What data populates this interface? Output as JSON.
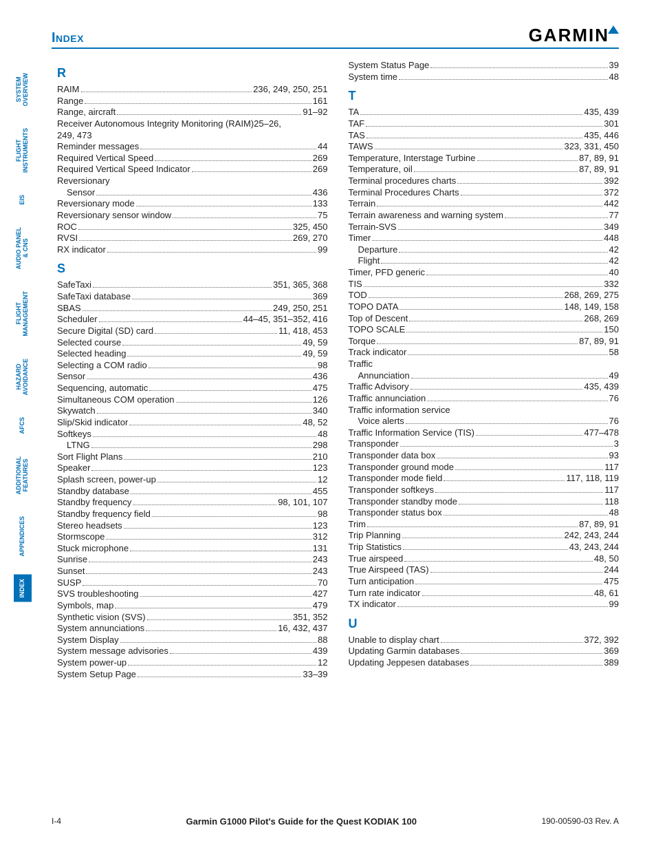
{
  "header": {
    "title": "Index",
    "logo_text": "GARMIN"
  },
  "tabs": [
    {
      "label": "SYSTEM\nOVERVIEW",
      "active": false
    },
    {
      "label": "FLIGHT\nINSTRUMENTS",
      "active": false
    },
    {
      "label": "EIS",
      "active": false
    },
    {
      "label": "AUDIO PANEL\n& CNS",
      "active": false
    },
    {
      "label": "FLIGHT\nMANAGEMENT",
      "active": false
    },
    {
      "label": "HAZARD\nAVOIDANCE",
      "active": false
    },
    {
      "label": "AFCS",
      "active": false
    },
    {
      "label": "ADDITIONAL\nFEATURES",
      "active": false
    },
    {
      "label": "APPENDICES",
      "active": false
    },
    {
      "label": "INDEX",
      "active": true
    }
  ],
  "footer": {
    "left": "I-4",
    "center": "Garmin G1000 Pilot's Guide for the Quest KODIAK 100",
    "right": "190-00590-03  Rev. A"
  },
  "sections": {
    "left": [
      {
        "head": "R",
        "items": [
          {
            "t": "RAIM",
            "p": "236, 249, 250, 251"
          },
          {
            "t": "Range",
            "p": "161"
          },
          {
            "t": "Range, aircraft",
            "p": "91–92"
          },
          {
            "t": "Receiver Autonomous Integrity Monitoring (RAIM)",
            "p": "25–26, 249, 473",
            "wrap": true
          },
          {
            "t": "Reminder messages",
            "p": "44"
          },
          {
            "t": "Required Vertical Speed",
            "p": "269"
          },
          {
            "t": "Required Vertical Speed Indicator",
            "p": "269"
          },
          {
            "t": "Reversionary",
            "p": "",
            "nodash": true
          },
          {
            "t": "Sensor",
            "p": "436",
            "indent": 1
          },
          {
            "t": "Reversionary mode",
            "p": "133"
          },
          {
            "t": "Reversionary sensor window",
            "p": "75"
          },
          {
            "t": "ROC",
            "p": "325, 450"
          },
          {
            "t": "RVSI",
            "p": "269, 270"
          },
          {
            "t": "RX indicator",
            "p": "99"
          }
        ]
      },
      {
        "head": "S",
        "items": [
          {
            "t": "SafeTaxi",
            "p": "351, 365, 368"
          },
          {
            "t": "SafeTaxi database",
            "p": "369"
          },
          {
            "t": "SBAS",
            "p": "249, 250, 251"
          },
          {
            "t": "Scheduler",
            "p": "44–45, 351–352, 416"
          },
          {
            "t": "Secure Digital (SD) card",
            "p": "11, 418, 453"
          },
          {
            "t": "Selected course",
            "p": "49, 59"
          },
          {
            "t": "Selected heading",
            "p": "49, 59"
          },
          {
            "t": "Selecting a COM radio",
            "p": "98"
          },
          {
            "t": "Sensor",
            "p": "436"
          },
          {
            "t": "Sequencing, automatic",
            "p": "475"
          },
          {
            "t": "Simultaneous COM operation",
            "p": "126"
          },
          {
            "t": "Skywatch",
            "p": "340"
          },
          {
            "t": "Slip/Skid indicator",
            "p": "48, 52"
          },
          {
            "t": "Softkeys",
            "p": "48"
          },
          {
            "t": "LTNG",
            "p": "298",
            "indent": 1
          },
          {
            "t": "Sort Flight Plans",
            "p": "210"
          },
          {
            "t": "Speaker",
            "p": "123"
          },
          {
            "t": "Splash screen, power-up",
            "p": "12"
          },
          {
            "t": "Standby database",
            "p": "455"
          },
          {
            "t": "Standby frequency",
            "p": "98, 101, 107"
          },
          {
            "t": "Standby frequency field",
            "p": "98"
          },
          {
            "t": "Stereo headsets",
            "p": "123"
          },
          {
            "t": "Stormscope",
            "p": "312"
          },
          {
            "t": "Stuck microphone",
            "p": "131"
          },
          {
            "t": "Sunrise",
            "p": "243"
          },
          {
            "t": "Sunset",
            "p": "243"
          },
          {
            "t": "SUSP",
            "p": "70"
          },
          {
            "t": "SVS troubleshooting",
            "p": "427"
          },
          {
            "t": "Symbols, map",
            "p": "479"
          },
          {
            "t": "Synthetic vision (SVS)",
            "p": "351, 352"
          },
          {
            "t": "System annunciations",
            "p": "16, 432, 437"
          },
          {
            "t": "System Display",
            "p": "88"
          },
          {
            "t": "System message advisories",
            "p": "439"
          },
          {
            "t": "System power-up",
            "p": "12"
          },
          {
            "t": "System Setup Page",
            "p": "33–39"
          }
        ]
      }
    ],
    "right": [
      {
        "head": "",
        "items": [
          {
            "t": "System Status Page",
            "p": "39"
          },
          {
            "t": "System time",
            "p": "48"
          }
        ]
      },
      {
        "head": "T",
        "items": [
          {
            "t": "TA",
            "p": "435, 439"
          },
          {
            "t": "TAF",
            "p": "301"
          },
          {
            "t": "TAS",
            "p": "435, 446"
          },
          {
            "t": "TAWS",
            "p": "323, 331, 450"
          },
          {
            "t": "Temperature, Interstage Turbine",
            "p": "87, 89, 91"
          },
          {
            "t": "Temperature, oil",
            "p": "87, 89, 91"
          },
          {
            "t": "Terminal procedures charts",
            "p": "392"
          },
          {
            "t": "Terminal Procedures Charts",
            "p": "372"
          },
          {
            "t": "Terrain",
            "p": "442"
          },
          {
            "t": "Terrain awareness and warning system",
            "p": "77"
          },
          {
            "t": "Terrain-SVS",
            "p": "349"
          },
          {
            "t": "Timer",
            "p": "448"
          },
          {
            "t": "Departure",
            "p": "42",
            "indent": 1
          },
          {
            "t": "Flight",
            "p": "42",
            "indent": 1
          },
          {
            "t": "Timer, PFD generic",
            "p": "40"
          },
          {
            "t": "TIS",
            "p": "332"
          },
          {
            "t": "TOD",
            "p": "268, 269, 275"
          },
          {
            "t": "TOPO DATA",
            "p": "148, 149, 158"
          },
          {
            "t": "Top of Descent",
            "p": "268, 269"
          },
          {
            "t": "TOPO SCALE",
            "p": "150"
          },
          {
            "t": "Torque",
            "p": "87, 89, 91"
          },
          {
            "t": "Track indicator",
            "p": "58"
          },
          {
            "t": "Traffic",
            "p": "",
            "nodash": true
          },
          {
            "t": "Annunciation",
            "p": "49",
            "indent": 1
          },
          {
            "t": "Traffic Advisory",
            "p": "435, 439"
          },
          {
            "t": "Traffic annunciation",
            "p": "76"
          },
          {
            "t": "Traffic information service",
            "p": "",
            "nodash": true
          },
          {
            "t": "Voice alerts",
            "p": "76",
            "indent": 1
          },
          {
            "t": "Traffic Information Service (TIS)",
            "p": "477–478"
          },
          {
            "t": "Transponder",
            "p": "3"
          },
          {
            "t": "Transponder data box",
            "p": "93"
          },
          {
            "t": "Transponder ground mode",
            "p": "117"
          },
          {
            "t": "Transponder mode field",
            "p": "117, 118, 119"
          },
          {
            "t": "Transponder softkeys",
            "p": "117"
          },
          {
            "t": "Transponder standby mode",
            "p": "118"
          },
          {
            "t": "Transponder status box",
            "p": "48"
          },
          {
            "t": "Trim",
            "p": "87, 89, 91"
          },
          {
            "t": "Trip Planning",
            "p": "242, 243, 244"
          },
          {
            "t": "Trip Statistics",
            "p": "43, 243, 244"
          },
          {
            "t": "True airspeed",
            "p": "48, 50"
          },
          {
            "t": "True Airspeed (TAS)",
            "p": "244"
          },
          {
            "t": "Turn anticipation",
            "p": "475"
          },
          {
            "t": "Turn rate indicator",
            "p": "48, 61"
          },
          {
            "t": "TX indicator",
            "p": "99"
          }
        ]
      },
      {
        "head": "U",
        "items": [
          {
            "t": "Unable to display chart",
            "p": "372, 392"
          },
          {
            "t": "Updating Garmin databases",
            "p": "369"
          },
          {
            "t": "Updating Jeppesen databases",
            "p": "389"
          }
        ]
      }
    ]
  }
}
